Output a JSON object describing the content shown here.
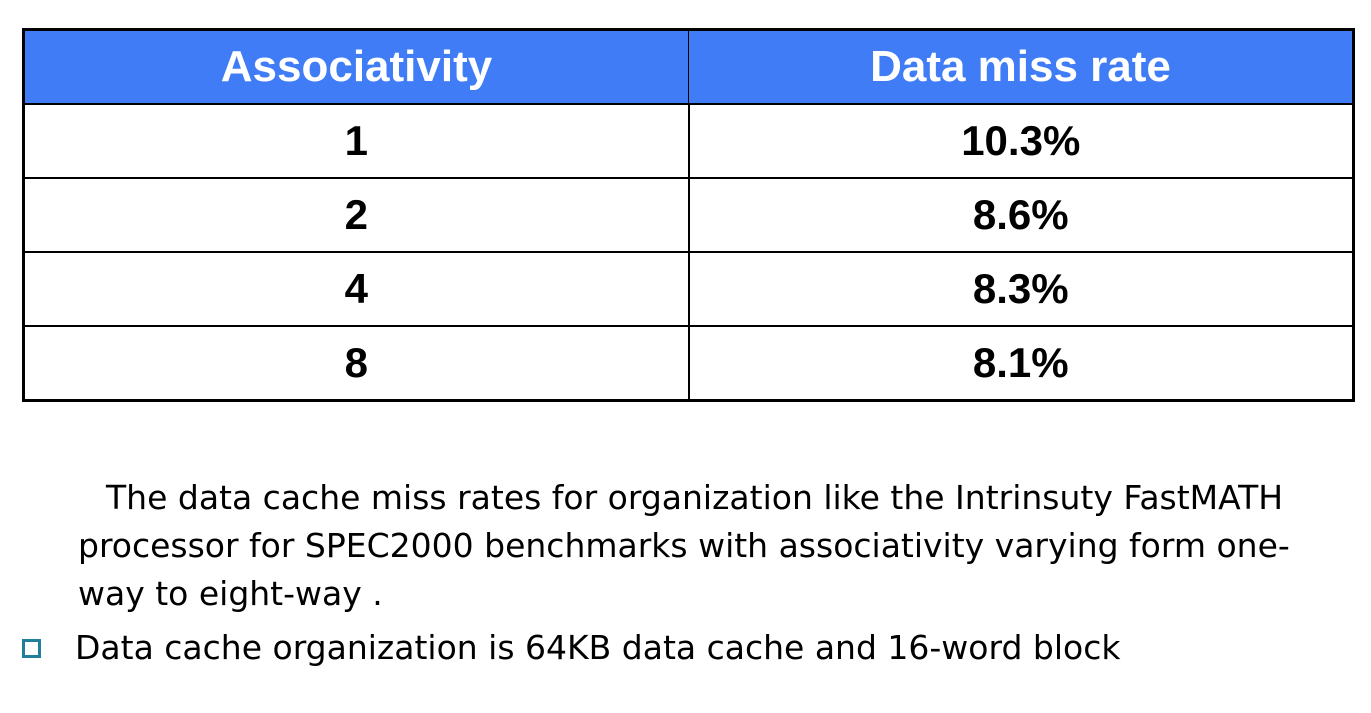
{
  "table": {
    "headers": [
      "Associativity",
      "Data miss rate"
    ],
    "rows": [
      [
        "1",
        "10.3%"
      ],
      [
        "2",
        "8.6%"
      ],
      [
        "4",
        "8.3%"
      ],
      [
        "8",
        "8.1%"
      ]
    ]
  },
  "caption": "The data cache miss rates for organization like the Intrinsuty FastMATH processor for SPEC2000 benchmarks with associativity varying form one-way to eight-way .",
  "bullet": {
    "text": "Data cache organization is 64KB data cache and 16-word block",
    "icon": "square-bullet-icon"
  },
  "colors": {
    "header_bg": "#3f7cf6",
    "header_text": "#ffffff",
    "bullet": "#1f7f9c"
  }
}
